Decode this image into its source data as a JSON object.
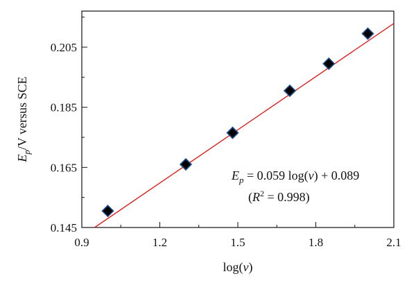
{
  "chart_data": {
    "type": "scatter",
    "xlabel": "log(v)",
    "ylabel": "Ep/V versus SCE",
    "xlim": [
      0.9,
      2.1
    ],
    "ylim": [
      0.145,
      0.217
    ],
    "x_ticks": [
      0.9,
      1.2,
      1.5,
      1.8,
      2.1
    ],
    "y_ticks": [
      0.145,
      0.165,
      0.185,
      0.205
    ],
    "x_tick_labels": [
      "0.9",
      "1.2",
      "1.5",
      "1.8",
      "2.1"
    ],
    "y_tick_labels": [
      "0.145",
      "0.165",
      "0.185",
      "0.205"
    ],
    "grid": false,
    "series": [
      {
        "marker": "diamond",
        "color": "#000000",
        "edge_color": "#1f4e8c",
        "points": [
          {
            "x": 1.0,
            "y": 0.1505
          },
          {
            "x": 1.3,
            "y": 0.166
          },
          {
            "x": 1.48,
            "y": 0.1765
          },
          {
            "x": 1.7,
            "y": 0.1905
          },
          {
            "x": 1.85,
            "y": 0.1995
          },
          {
            "x": 2.0,
            "y": 0.2095
          }
        ]
      }
    ],
    "fit_line": {
      "slope": 0.059,
      "intercept": 0.089,
      "color": "#e0201c"
    },
    "annotations": {
      "equation": "Ep = 0.059 log(v) + 0.089",
      "r2": "(R2 = 0.998)"
    }
  }
}
